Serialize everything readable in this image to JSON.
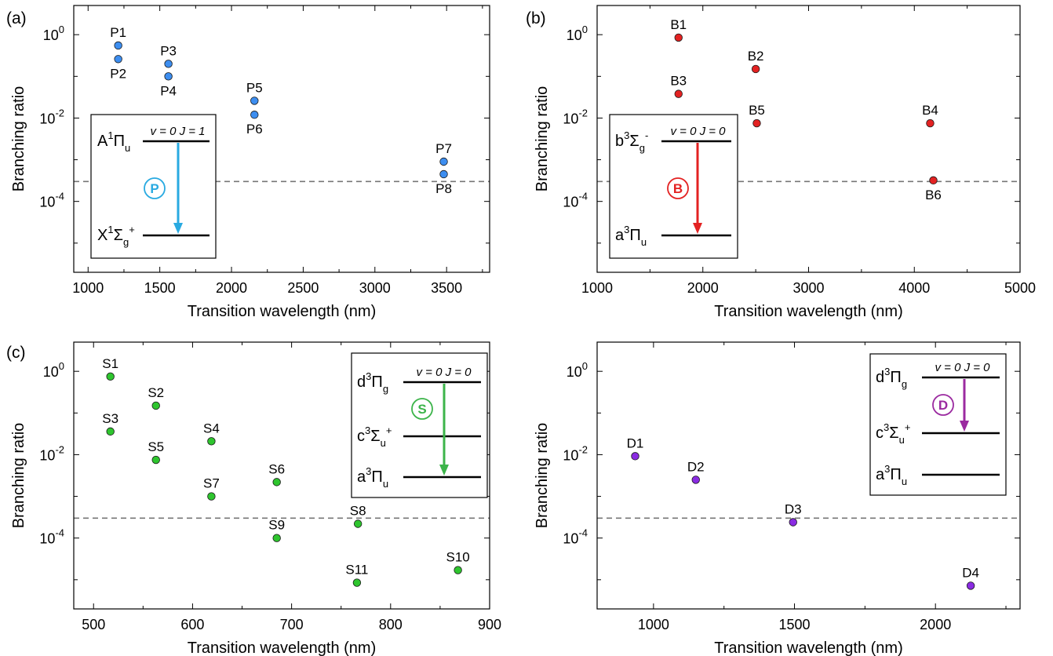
{
  "chart_data": [
    {
      "panel": "(a)",
      "type": "scatter",
      "xlabel": "Transition wavelength (nm)",
      "ylabel": "Branching ratio",
      "xlim": [
        900,
        3800
      ],
      "xticks": [
        1000,
        1500,
        2000,
        2500,
        3000,
        3500
      ],
      "ylim_log10": [
        -5.7,
        0.7
      ],
      "yscale": "log",
      "yticks_log10": [
        0,
        -2,
        -4
      ],
      "threshold": 0.0003,
      "color": "#3d8ef0",
      "points": [
        {
          "label": "P1",
          "x": 1210,
          "y": 0.55,
          "label_pos": "above"
        },
        {
          "label": "P2",
          "x": 1210,
          "y": 0.26,
          "label_pos": "below"
        },
        {
          "label": "P3",
          "x": 1560,
          "y": 0.2,
          "label_pos": "above"
        },
        {
          "label": "P4",
          "x": 1560,
          "y": 0.1,
          "label_pos": "below"
        },
        {
          "label": "P5",
          "x": 2160,
          "y": 0.026,
          "label_pos": "above"
        },
        {
          "label": "P6",
          "x": 2160,
          "y": 0.012,
          "label_pos": "below"
        },
        {
          "label": "P7",
          "x": 3480,
          "y": 0.0009,
          "label_pos": "above"
        },
        {
          "label": "P8",
          "x": 3480,
          "y": 0.00045,
          "label_pos": "below"
        }
      ],
      "inset": {
        "upper": {
          "main": "A",
          "sup": "1",
          "sym": "Π",
          "sub": "u",
          "post_sup": ""
        },
        "lower": {
          "main": "X",
          "sup": "1",
          "sym": "Σ",
          "sub": "g",
          "post_sup": "+"
        },
        "middle": null,
        "vj": "v = 0 J = 1",
        "badge": "P",
        "arrow_color": "#29aae1"
      }
    },
    {
      "panel": "(b)",
      "type": "scatter",
      "xlabel": "Transition wavelength (nm)",
      "ylabel": "Branching ratio",
      "xlim": [
        1000,
        5000
      ],
      "xticks": [
        1000,
        2000,
        3000,
        4000,
        5000
      ],
      "ylim_log10": [
        -5.7,
        0.7
      ],
      "yscale": "log",
      "yticks_log10": [
        0,
        -2,
        -4
      ],
      "threshold": 0.0003,
      "color": "#e32222",
      "points": [
        {
          "label": "B1",
          "x": 1770,
          "y": 0.85,
          "label_pos": "above"
        },
        {
          "label": "B2",
          "x": 2500,
          "y": 0.15,
          "label_pos": "above"
        },
        {
          "label": "B3",
          "x": 1770,
          "y": 0.038,
          "label_pos": "above"
        },
        {
          "label": "B4",
          "x": 4150,
          "y": 0.0075,
          "label_pos": "above"
        },
        {
          "label": "B5",
          "x": 2510,
          "y": 0.0075,
          "label_pos": "above"
        },
        {
          "label": "B6",
          "x": 4180,
          "y": 0.00032,
          "label_pos": "below"
        }
      ],
      "inset": {
        "upper": {
          "main": "b",
          "sup": "3",
          "sym": "Σ",
          "sub": "g",
          "post_sup": "-"
        },
        "lower": {
          "main": "a",
          "sup": "3",
          "sym": "Π",
          "sub": "u",
          "post_sup": ""
        },
        "middle": null,
        "vj": "v = 0 J = 0",
        "badge": "B",
        "arrow_color": "#e32222"
      }
    },
    {
      "panel": "(c)",
      "type": "scatter",
      "xlabel": "Transition wavelength (nm)",
      "ylabel": "Branching ratio",
      "xlim": [
        480,
        900
      ],
      "xticks": [
        500,
        600,
        700,
        800,
        900
      ],
      "ylim_log10": [
        -5.7,
        0.7
      ],
      "yscale": "log",
      "yticks_log10": [
        0,
        -2,
        -4
      ],
      "threshold": 0.0003,
      "color": "#2ec52e",
      "points": [
        {
          "label": "S1",
          "x": 517,
          "y": 0.75,
          "label_pos": "above"
        },
        {
          "label": "S2",
          "x": 563,
          "y": 0.15,
          "label_pos": "above"
        },
        {
          "label": "S3",
          "x": 517,
          "y": 0.036,
          "label_pos": "above"
        },
        {
          "label": "S4",
          "x": 619,
          "y": 0.021,
          "label_pos": "above"
        },
        {
          "label": "S5",
          "x": 563,
          "y": 0.0075,
          "label_pos": "above"
        },
        {
          "label": "S6",
          "x": 685,
          "y": 0.0022,
          "label_pos": "above"
        },
        {
          "label": "S7",
          "x": 619,
          "y": 0.001,
          "label_pos": "above"
        },
        {
          "label": "S8",
          "x": 767,
          "y": 0.00022,
          "label_pos": "above"
        },
        {
          "label": "S9",
          "x": 685,
          "y": 0.0001,
          "label_pos": "above"
        },
        {
          "label": "S10",
          "x": 868,
          "y": 1.7e-05,
          "label_pos": "above"
        },
        {
          "label": "S11",
          "x": 766,
          "y": 8.5e-06,
          "label_pos": "above"
        }
      ],
      "inset": {
        "upper": {
          "main": "d",
          "sup": "3",
          "sym": "Π",
          "sub": "g",
          "post_sup": ""
        },
        "middle": {
          "main": "c",
          "sup": "3",
          "sym": "Σ",
          "sub": "u",
          "post_sup": "+"
        },
        "lower": {
          "main": "a",
          "sup": "3",
          "sym": "Π",
          "sub": "u",
          "post_sup": ""
        },
        "vj": "v = 0 J = 0",
        "badge": "S",
        "arrow_color": "#3cb44a"
      }
    },
    {
      "panel": "",
      "type": "scatter",
      "xlabel": "Transition wavelength (nm)",
      "ylabel": "Branching ratio",
      "xlim": [
        800,
        2300
      ],
      "xticks": [
        1000,
        1500,
        2000
      ],
      "ylim_log10": [
        -5.7,
        0.7
      ],
      "yscale": "log",
      "yticks_log10": [
        0,
        -2,
        -4
      ],
      "threshold": 0.0003,
      "color": "#8a2be2",
      "points": [
        {
          "label": "D1",
          "x": 935,
          "y": 0.0092,
          "label_pos": "above"
        },
        {
          "label": "D2",
          "x": 1150,
          "y": 0.0025,
          "label_pos": "above"
        },
        {
          "label": "D3",
          "x": 1495,
          "y": 0.00024,
          "label_pos": "above"
        },
        {
          "label": "D4",
          "x": 2125,
          "y": 7.2e-06,
          "label_pos": "above"
        }
      ],
      "inset": {
        "upper": {
          "main": "d",
          "sup": "3",
          "sym": "Π",
          "sub": "g",
          "post_sup": ""
        },
        "middle": {
          "main": "c",
          "sup": "3",
          "sym": "Σ",
          "sub": "u",
          "post_sup": "+"
        },
        "lower": {
          "main": "a",
          "sup": "3",
          "sym": "Π",
          "sub": "u",
          "post_sup": ""
        },
        "vj": "v = 0 J = 0",
        "badge": "D",
        "arrow_color": "#9b2aa0"
      }
    }
  ]
}
